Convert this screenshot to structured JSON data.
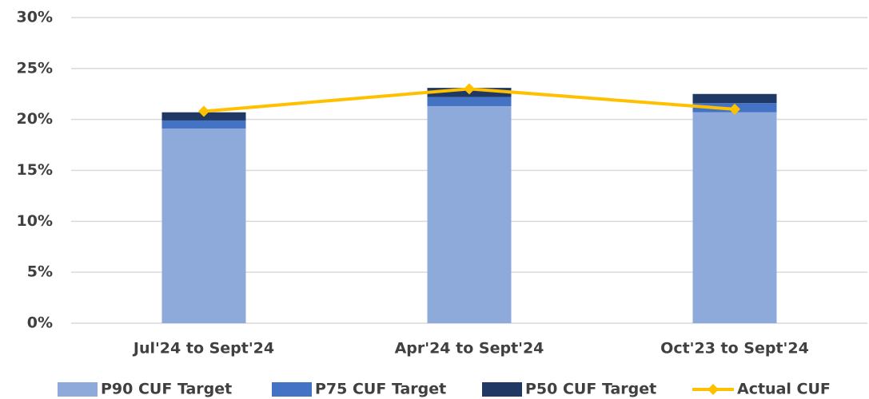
{
  "chart_data": {
    "type": "stacked-bar-line",
    "categories": [
      "Jul'24 to Sept'24",
      "Apr'24 to Sept'24",
      "Oct'23 to Sept'24"
    ],
    "series": [
      {
        "name": "P90 CUF Target",
        "color": "#8eaadb",
        "kind": "bar",
        "values": [
          19.1,
          21.3,
          20.7
        ]
      },
      {
        "name": "P75 CUF Target",
        "color": "#4472c4",
        "kind": "bar",
        "values": [
          0.8,
          0.9,
          0.9
        ]
      },
      {
        "name": "P50 CUF Target",
        "color": "#203864",
        "kind": "bar",
        "values": [
          0.8,
          0.9,
          0.9
        ]
      },
      {
        "name": "Actual CUF",
        "color": "#ffc000",
        "kind": "line",
        "values": [
          20.8,
          23.0,
          21.0
        ]
      }
    ],
    "ylim": [
      0,
      30
    ],
    "yticks": [
      {
        "value": 0,
        "label": "0%"
      },
      {
        "value": 5,
        "label": "5%"
      },
      {
        "value": 10,
        "label": "10%"
      },
      {
        "value": 15,
        "label": "15%"
      },
      {
        "value": 20,
        "label": "20%"
      },
      {
        "value": 25,
        "label": "25%"
      },
      {
        "value": 30,
        "label": "30%"
      }
    ],
    "grid": true,
    "legend": "bottom"
  }
}
